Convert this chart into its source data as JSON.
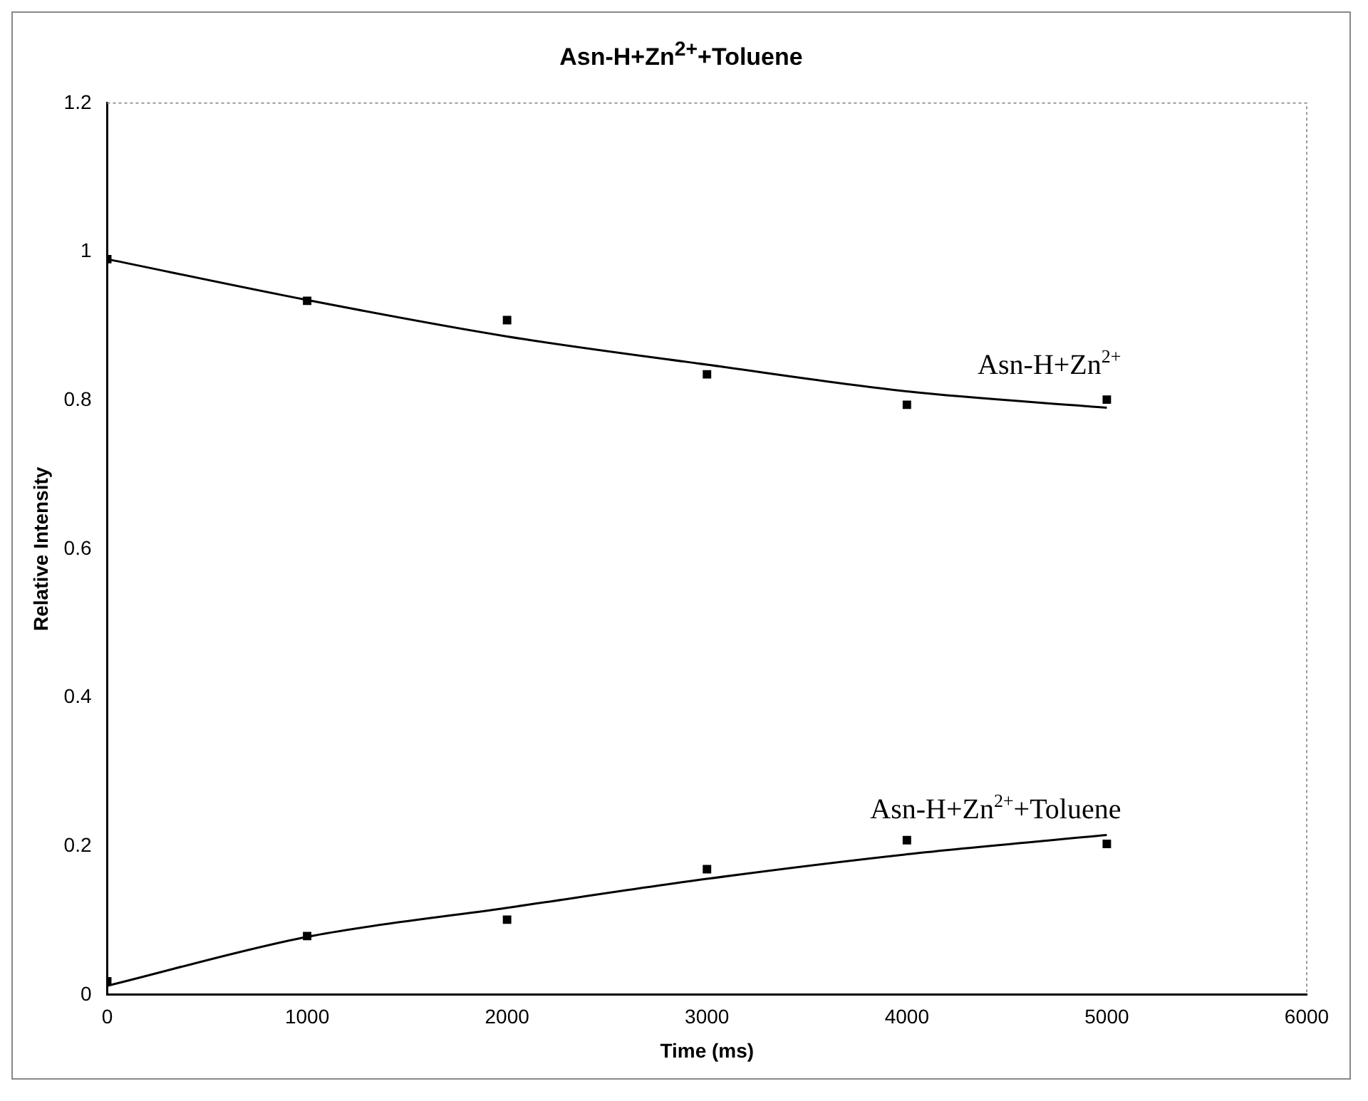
{
  "chart_data": {
    "type": "scatter",
    "title": "Asn-H+Zn$^{2+}$+Toluene",
    "xlabel": "Time (ms)",
    "ylabel": "Relative Intensity",
    "xlim": [
      0,
      6000
    ],
    "xticks": [
      0,
      1000,
      2000,
      3000,
      4000,
      5000,
      6000
    ],
    "ylim": [
      0,
      1.2
    ],
    "yticks": [
      0,
      0.2,
      0.4,
      0.6,
      0.8,
      1,
      1.2
    ],
    "grid": false,
    "legend": false,
    "marker": "square",
    "series": [
      {
        "name": "Asn-H+Zn$^{2+}$",
        "color": "#000000",
        "x": [
          0,
          1000,
          2000,
          3000,
          4000,
          5000
        ],
        "values": [
          0.99,
          0.934,
          0.908,
          0.835,
          0.794,
          0.801
        ]
      },
      {
        "name": "Asn-H+Zn$^{2+}$+Toluene",
        "color": "#000000",
        "x": [
          0,
          1000,
          2000,
          3000,
          4000,
          5000
        ],
        "values": [
          0.018,
          0.079,
          0.101,
          0.169,
          0.208,
          0.203
        ]
      },
      {
        "type": "line",
        "color": "#000000",
        "marker": "none",
        "line_style": "solid",
        "x": [
          0,
          1000,
          2000,
          3000,
          4000,
          5000
        ],
        "values": [
          0.99,
          0.935,
          0.886,
          0.848,
          0.812,
          0.79
        ]
      },
      {
        "type": "line",
        "color": "#000000",
        "marker": "none",
        "line_style": "solid",
        "x": [
          0,
          1000,
          2000,
          3000,
          4000,
          5000
        ],
        "values": [
          0.012,
          0.078,
          0.117,
          0.156,
          0.189,
          0.215
        ]
      }
    ]
  }
}
